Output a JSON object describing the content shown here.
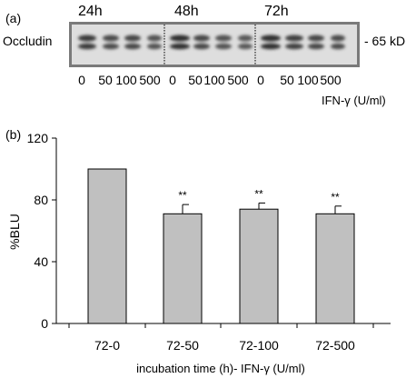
{
  "panel_a": {
    "label": "(a)",
    "protein": "Occludin",
    "mw_marker": "- 65 kD",
    "time_groups": [
      "24h",
      "48h",
      "72h"
    ],
    "lane_labels": [
      "0",
      "50",
      "100",
      "500",
      "0",
      "50",
      "100",
      "500",
      "0",
      "50",
      "100",
      "500"
    ],
    "concentration_label": "IFN-γ (U/ml)"
  },
  "panel_b": {
    "label": "(b)",
    "chart_data": {
      "type": "bar",
      "categories": [
        "72-0",
        "72-50",
        "72-100",
        "72-500"
      ],
      "values": [
        100,
        71,
        74,
        71
      ],
      "errors": [
        0,
        6,
        4,
        5
      ],
      "significance": [
        "",
        "**",
        "**",
        "**"
      ],
      "xlabel": "incubation time (h)- IFN-γ (U/ml)",
      "ylabel": "%BLU",
      "ylim": [
        0,
        120
      ],
      "yticks": [
        "0",
        "40",
        "80",
        "120"
      ],
      "bar_color": "#c0c0c0",
      "grid": false
    }
  }
}
